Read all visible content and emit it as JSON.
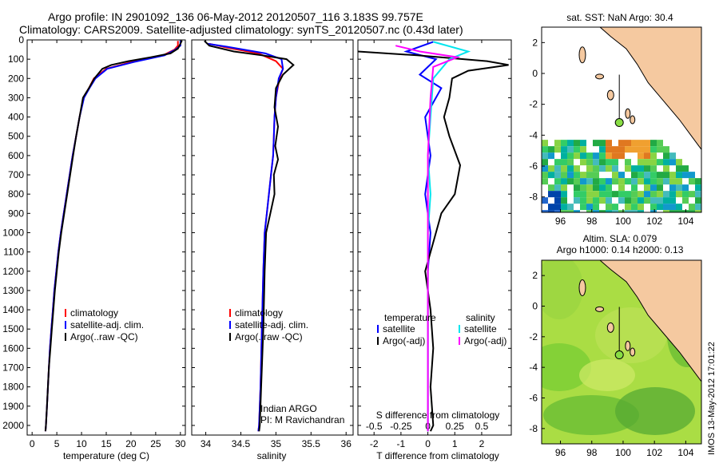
{
  "title_line1": "Argo profile: IN 2901092_136 06-May-2012 20120507_116 3.183S 99.757E",
  "title_line2": "Climatology: CARS2009. Satellite-adjusted climatology: synTS_20120507.nc (0.43d later)",
  "side_stamp": "IMOS 13-May-2012 17:01:22",
  "colors": {
    "climatology": "#ff0000",
    "satellite": "#0000ff",
    "argo": "#000000",
    "sal_satellite": "#00e5ee",
    "sal_argo": "#ff00ff",
    "land": "#f5c9a0",
    "marker": "#88dd44"
  },
  "chart_data": [
    {
      "id": "temperature",
      "type": "line",
      "xlabel": "temperature (deg C)",
      "ylabel": "",
      "xlim": [
        -1,
        31
      ],
      "ylim": [
        2050,
        0
      ],
      "x_ticks": [
        "0",
        "5",
        "10",
        "15",
        "20",
        "25",
        "30"
      ],
      "y_ticks": [
        "0",
        "100",
        "200",
        "300",
        "400",
        "500",
        "600",
        "700",
        "800",
        "900",
        "1000",
        "1100",
        "1200",
        "1300",
        "1400",
        "1500",
        "1600",
        "1700",
        "1800",
        "1900",
        "2000"
      ],
      "legend": [
        "climatology",
        "satellite-adj. clim.",
        "Argo(..raw -QC)"
      ],
      "series": [
        {
          "name": "climatology",
          "color_key": "climatology",
          "points": [
            [
              29.5,
              5
            ],
            [
              29.5,
              30
            ],
            [
              28.8,
              50
            ],
            [
              26.5,
              80
            ],
            [
              20,
              115
            ],
            [
              15,
              150
            ],
            [
              12.5,
              200
            ],
            [
              11.5,
              250
            ],
            [
              10.4,
              300
            ],
            [
              9.6,
              400
            ],
            [
              8.9,
              500
            ],
            [
              8.2,
              600
            ],
            [
              7.6,
              700
            ],
            [
              7,
              800
            ],
            [
              6.4,
              900
            ],
            [
              5.8,
              1000
            ],
            [
              5.3,
              1100
            ],
            [
              4.9,
              1200
            ],
            [
              4.5,
              1300
            ],
            [
              4.2,
              1400
            ],
            [
              3.9,
              1500
            ],
            [
              3.6,
              1600
            ],
            [
              3.4,
              1700
            ],
            [
              3.2,
              1800
            ],
            [
              3,
              1900
            ],
            [
              2.8,
              2000
            ],
            [
              2.7,
              2030
            ]
          ]
        },
        {
          "name": "satellite-adj. clim.",
          "color_key": "satellite",
          "points": [
            [
              30,
              5
            ],
            [
              30,
              30
            ],
            [
              29,
              50
            ],
            [
              26.8,
              80
            ],
            [
              20.5,
              115
            ],
            [
              15.2,
              150
            ],
            [
              12.8,
              200
            ],
            [
              11.6,
              250
            ],
            [
              10.5,
              300
            ],
            [
              9.6,
              400
            ],
            [
              8.9,
              500
            ],
            [
              8.2,
              600
            ],
            [
              7.6,
              700
            ],
            [
              7,
              800
            ],
            [
              6.4,
              900
            ],
            [
              5.8,
              1000
            ],
            [
              5.3,
              1100
            ],
            [
              4.9,
              1200
            ],
            [
              4.5,
              1300
            ],
            [
              4.2,
              1400
            ],
            [
              3.9,
              1500
            ],
            [
              3.6,
              1600
            ],
            [
              3.4,
              1700
            ],
            [
              3.2,
              1800
            ],
            [
              3,
              1900
            ],
            [
              2.8,
              2000
            ],
            [
              2.7,
              2030
            ]
          ]
        },
        {
          "name": "Argo(..raw -QC)",
          "color_key": "argo",
          "points": [
            [
              30.3,
              3
            ],
            [
              30,
              20
            ],
            [
              29.5,
              45
            ],
            [
              28,
              70
            ],
            [
              24,
              90
            ],
            [
              19.5,
              110
            ],
            [
              16,
              130
            ],
            [
              14.2,
              150
            ],
            [
              12.6,
              200
            ],
            [
              11.5,
              250
            ],
            [
              10.3,
              300
            ],
            [
              9.6,
              400
            ],
            [
              8.9,
              500
            ],
            [
              8.3,
              600
            ],
            [
              7.7,
              700
            ],
            [
              7.1,
              800
            ],
            [
              6.5,
              900
            ],
            [
              5.9,
              1000
            ],
            [
              5.4,
              1100
            ],
            [
              5,
              1200
            ],
            [
              4.6,
              1300
            ],
            [
              4.3,
              1400
            ],
            [
              4,
              1500
            ],
            [
              3.7,
              1600
            ],
            [
              3.4,
              1700
            ],
            [
              3.2,
              1800
            ],
            [
              3,
              1900
            ],
            [
              2.8,
              2000
            ],
            [
              2.7,
              2030
            ]
          ]
        }
      ]
    },
    {
      "id": "salinity",
      "type": "line",
      "xlabel": "salinity",
      "ylabel": "",
      "xlim": [
        33.8,
        36.1
      ],
      "ylim": [
        2050,
        0
      ],
      "x_ticks": [
        "34",
        "34.5",
        "35",
        "35.5",
        "36"
      ],
      "legend": [
        "climatology",
        "satellite-adj. clim.",
        "Argo(..raw -QC)"
      ],
      "annotation_line1": "Indian ARGO",
      "annotation_line2": "PI: M Ravichandran",
      "series": [
        {
          "name": "climatology",
          "color_key": "climatology",
          "points": [
            [
              34.05,
              20
            ],
            [
              34.3,
              40
            ],
            [
              34.75,
              70
            ],
            [
              35.0,
              110
            ],
            [
              35.1,
              150
            ],
            [
              35.05,
              200
            ],
            [
              35.0,
              300
            ],
            [
              34.98,
              400
            ],
            [
              34.97,
              500
            ],
            [
              34.96,
              600
            ],
            [
              34.93,
              700
            ],
            [
              34.9,
              800
            ],
            [
              34.87,
              900
            ],
            [
              34.84,
              1000
            ],
            [
              34.82,
              1200
            ],
            [
              34.8,
              1500
            ],
            [
              34.78,
              1800
            ],
            [
              34.76,
              2000
            ],
            [
              34.75,
              2030
            ]
          ]
        },
        {
          "name": "satellite-adj. clim.",
          "color_key": "satellite",
          "points": [
            [
              34.02,
              20
            ],
            [
              34.3,
              35
            ],
            [
              34.85,
              70
            ],
            [
              35.08,
              100
            ],
            [
              35.1,
              150
            ],
            [
              35.04,
              200
            ],
            [
              35.0,
              300
            ],
            [
              34.98,
              400
            ],
            [
              34.97,
              500
            ],
            [
              34.96,
              600
            ],
            [
              34.93,
              700
            ],
            [
              34.9,
              800
            ],
            [
              34.87,
              900
            ],
            [
              34.84,
              1000
            ],
            [
              34.82,
              1200
            ],
            [
              34.8,
              1500
            ],
            [
              34.78,
              1800
            ],
            [
              34.76,
              2000
            ],
            [
              34.75,
              2030
            ]
          ]
        },
        {
          "name": "Argo(..raw -QC)",
          "color_key": "argo",
          "points": [
            [
              33.98,
              5
            ],
            [
              34.05,
              30
            ],
            [
              34.4,
              60
            ],
            [
              34.8,
              80
            ],
            [
              35.15,
              100
            ],
            [
              35.25,
              130
            ],
            [
              35.1,
              180
            ],
            [
              35.0,
              250
            ],
            [
              34.98,
              350
            ],
            [
              35.03,
              450
            ],
            [
              34.99,
              550
            ],
            [
              35.03,
              620
            ],
            [
              34.97,
              700
            ],
            [
              34.98,
              800
            ],
            [
              34.92,
              900
            ],
            [
              34.86,
              1000
            ],
            [
              34.84,
              1200
            ],
            [
              34.82,
              1500
            ],
            [
              34.79,
              1800
            ],
            [
              34.77,
              2000
            ],
            [
              34.76,
              2030
            ]
          ]
        }
      ]
    },
    {
      "id": "difference",
      "type": "line",
      "xlabel": "T difference from climatology",
      "x2label": "S difference from climatology",
      "ylabel": "",
      "xlim": [
        -2.6,
        3.1
      ],
      "ylim": [
        2050,
        0
      ],
      "x_ticks": [
        "-2",
        "-1",
        "0",
        "1",
        "2"
      ],
      "x2_ticks": [
        "-0.5",
        "-0.25",
        "0",
        "0.25",
        "0.5"
      ],
      "legend_temperature_title": "temperature",
      "legend_salinity_title": "salinity",
      "legend": [
        "satellite",
        "Argo(-adj)",
        "satellite",
        "Argo(-adj)"
      ],
      "series": [
        {
          "name": "satellite",
          "color_key": "satellite",
          "points": [
            [
              0.2,
              10
            ],
            [
              -0.8,
              60
            ],
            [
              0.3,
              100
            ],
            [
              -0.3,
              180
            ],
            [
              0.5,
              250
            ],
            [
              -0.1,
              400
            ],
            [
              0.1,
              600
            ],
            [
              -0.1,
              800
            ],
            [
              0.1,
              1000
            ],
            [
              0,
              1200
            ],
            [
              0,
              1500
            ],
            [
              0,
              1800
            ],
            [
              0,
              2030
            ]
          ]
        },
        {
          "name": "Argo(-adj)",
          "color_key": "argo",
          "points": [
            [
              -2.6,
              60
            ],
            [
              -0.4,
              80
            ],
            [
              2.2,
              110
            ],
            [
              3.0,
              130
            ],
            [
              1.5,
              160
            ],
            [
              0.9,
              200
            ],
            [
              0.8,
              300
            ],
            [
              0.6,
              400
            ],
            [
              0.8,
              500
            ],
            [
              1.2,
              650
            ],
            [
              1.0,
              800
            ],
            [
              0.5,
              900
            ],
            [
              0.3,
              1000
            ],
            [
              -0.1,
              1200
            ],
            [
              0.1,
              1400
            ],
            [
              0.2,
              1600
            ],
            [
              0.1,
              1800
            ],
            [
              0.2,
              2000
            ],
            [
              0.1,
              2030
            ]
          ]
        },
        {
          "name": "satellite",
          "color_key": "sal_satellite",
          "points": [
            [
              0.2,
              10
            ],
            [
              1.5,
              60
            ],
            [
              0.8,
              100
            ],
            [
              0.2,
              200
            ],
            [
              0.1,
              400
            ],
            [
              0.0,
              600
            ],
            [
              0.1,
              800
            ],
            [
              0.0,
              1000
            ],
            [
              0.0,
              1300
            ],
            [
              0.0,
              2030
            ]
          ]
        },
        {
          "name": "Argo(-adj)",
          "color_key": "sal_argo",
          "points": [
            [
              -1.2,
              30
            ],
            [
              -0.3,
              60
            ],
            [
              1.1,
              90
            ],
            [
              0.2,
              140
            ],
            [
              0.1,
              300
            ],
            [
              0.0,
              600
            ],
            [
              0.0,
              1000
            ],
            [
              0.0,
              2030
            ]
          ]
        }
      ]
    },
    {
      "id": "sst-map",
      "type": "heatmap",
      "title": "sat. SST: NaN Argo: 30.4",
      "xlim": [
        94.8,
        105
      ],
      "ylim": [
        -9,
        3
      ],
      "x_ticks": [
        "96",
        "98",
        "100",
        "102",
        "104"
      ],
      "y_ticks": [
        "2",
        "0",
        "-2",
        "-4",
        "-6",
        "-8"
      ],
      "argo_position": [
        99.757,
        -3.183
      ]
    },
    {
      "id": "sla-map",
      "type": "heatmap",
      "title": "Altim. SLA: 0.079",
      "subtitle": "Argo h1000: 0.14 h2000: 0.13",
      "xlim": [
        94.8,
        105
      ],
      "ylim": [
        -9,
        3
      ],
      "x_ticks": [
        "96",
        "98",
        "100",
        "102",
        "104"
      ],
      "y_ticks": [
        "2",
        "0",
        "-2",
        "-4",
        "-6",
        "-8"
      ],
      "argo_position": [
        99.757,
        -3.183
      ]
    }
  ]
}
